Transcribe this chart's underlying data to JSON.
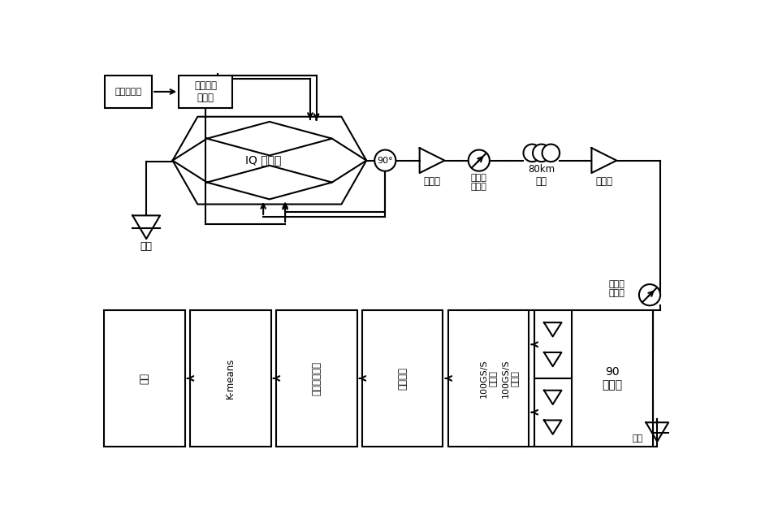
{
  "bg_color": "#ffffff",
  "line_color": "#000000",
  "figsize": [
    9.42,
    6.33
  ],
  "dpi": 100,
  "texts": {
    "prbs": "伪随机序列",
    "awg": "任意波形\n发生器",
    "iq_mod": "IQ 调制器",
    "amp": "放大器",
    "voa": "可变光\n衰减器",
    "fiber": "80km\n光纤",
    "laser": "激光",
    "mixer": "90\n混频器",
    "osc": "100GS/S\n示波器",
    "clk": "时钟恢复",
    "carrier": "载波相位恢复",
    "kmeans": "K-means",
    "decode": "解码",
    "deg90": "90°"
  }
}
